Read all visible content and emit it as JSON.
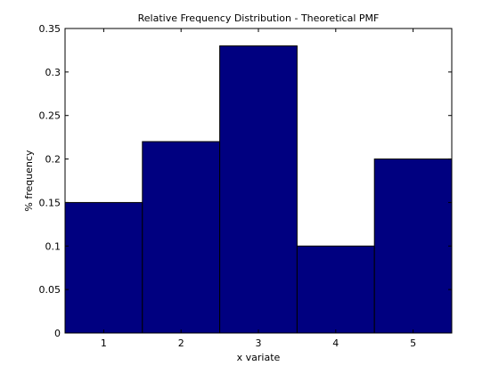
{
  "chart_data": {
    "type": "bar",
    "title": "Relative Frequency Distribution - Theoretical PMF",
    "xlabel": "x variate",
    "ylabel": "% frequency",
    "categories": [
      "1",
      "2",
      "3",
      "4",
      "5"
    ],
    "values": [
      0.15,
      0.22,
      0.33,
      0.1,
      0.2
    ],
    "ylim": [
      0,
      0.35
    ],
    "yticks": [
      "0",
      "0.05",
      "0.1",
      "0.15",
      "0.2",
      "0.25",
      "0.3",
      "0.35"
    ],
    "grid": false,
    "bar_color": "#000080",
    "bar_edge_color": "#000000"
  }
}
